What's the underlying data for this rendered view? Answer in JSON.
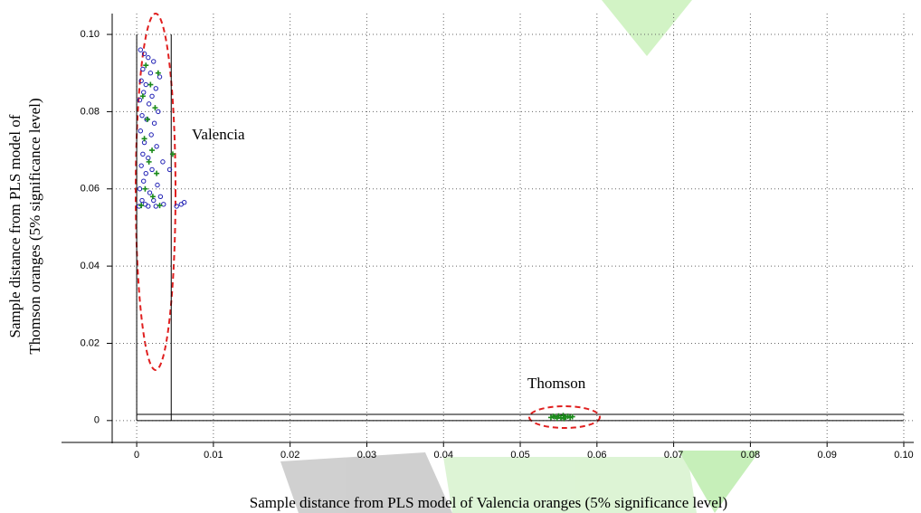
{
  "chart_data": {
    "type": "scatter",
    "xlabel": "Sample distance from PLS model of Valencia oranges (5% significance level)",
    "ylabel": [
      "Sample distance from PLS model of",
      "Thomson oranges (5% significance level)"
    ],
    "annotations": [
      "Valencia",
      "Thomson"
    ],
    "xlim": [
      -0.0098,
      0.1013
    ],
    "ylim": [
      -0.0059,
      0.1054
    ],
    "xticks": [
      0,
      0.01,
      0.02,
      0.03,
      0.04,
      0.05,
      0.06,
      0.07,
      0.08,
      0.09,
      {
        "value": 0.1,
        "label": "0.10"
      }
    ],
    "yticks": [
      0,
      0.02,
      0.04,
      0.06,
      0.08,
      {
        "value": 0.1,
        "label": "0.10"
      }
    ],
    "x_critical": 0.0045,
    "y_critical": 0.0016,
    "grid": true,
    "series": [
      {
        "color": "#1f1fb4",
        "marker": "circle",
        "x": [
          0.0005,
          0.001,
          0.0015,
          0.0022,
          0.0008,
          0.0018,
          0.003,
          0.0006,
          0.0012,
          0.0025,
          0.0009,
          0.002,
          0.0004,
          0.0016,
          0.0028,
          0.0007,
          0.0013,
          0.0023,
          0.0005,
          0.0019,
          0.001,
          0.0026,
          0.0008,
          0.0015,
          0.0034,
          0.0006,
          0.002,
          0.0012,
          0.0043,
          0.0009,
          0.0027,
          0.0004,
          0.0017,
          0.0031,
          0.0007,
          0.0022,
          0.0011,
          0.0035,
          0.0003,
          0.0015,
          0.0025,
          0.0052,
          0.0058,
          0.0062
        ],
        "y": [
          0.096,
          0.095,
          0.094,
          0.093,
          0.091,
          0.09,
          0.089,
          0.088,
          0.087,
          0.086,
          0.085,
          0.084,
          0.083,
          0.082,
          0.08,
          0.079,
          0.078,
          0.077,
          0.075,
          0.074,
          0.072,
          0.071,
          0.069,
          0.068,
          0.067,
          0.066,
          0.065,
          0.064,
          0.065,
          0.062,
          0.061,
          0.06,
          0.059,
          0.058,
          0.057,
          0.057,
          0.056,
          0.056,
          0.0555,
          0.0555,
          0.0555,
          0.0555,
          0.056,
          0.0565
        ]
      },
      {
        "color": "#1a8a1a",
        "marker": "plus",
        "x": [
          0.0012,
          0.0028,
          0.0018,
          0.0008,
          0.0024,
          0.0014,
          0.001,
          0.002,
          0.0047,
          0.0016,
          0.0026,
          0.0011,
          0.0021,
          0.003,
          0.0006,
          0.054,
          0.0545,
          0.055,
          0.0553,
          0.0556,
          0.0559,
          0.0562,
          0.0565,
          0.0548,
          0.0557,
          0.0543,
          0.0568
        ],
        "y": [
          0.092,
          0.09,
          0.087,
          0.084,
          0.081,
          0.078,
          0.073,
          0.07,
          0.069,
          0.067,
          0.064,
          0.06,
          0.058,
          0.0557,
          0.0557,
          0.0008,
          0.001,
          0.0012,
          0.0007,
          0.0013,
          0.0009,
          0.0011,
          0.0008,
          0.0006,
          0.0005,
          0.0011,
          0.001
        ]
      }
    ]
  }
}
